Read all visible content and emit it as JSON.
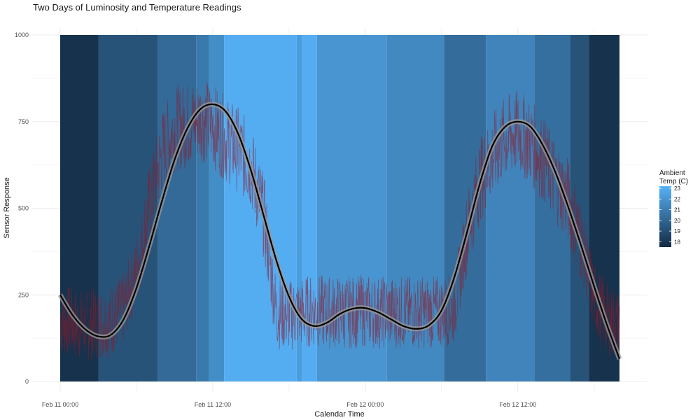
{
  "chart_data": {
    "type": "line",
    "title": "Two Days of Luminosity and Temperature Readings",
    "xlabel": "Calendar Time",
    "ylabel": "Sensor Response",
    "x_ticks": [
      {
        "hour": 0,
        "label": "Feb 11 00:00"
      },
      {
        "hour": 12,
        "label": "Feb 11 12:00"
      },
      {
        "hour": 24,
        "label": "Feb 12 00:00"
      },
      {
        "hour": 36,
        "label": "Feb 12 12:00"
      }
    ],
    "x_range_hours": [
      0,
      44
    ],
    "ylim": [
      0,
      1000
    ],
    "y_ticks": [
      0,
      250,
      500,
      750,
      1000
    ],
    "grid": true,
    "raw_series": {
      "color": "#8b1a2b",
      "points": [
        [
          0,
          180
        ],
        [
          1,
          170
        ],
        [
          2,
          160
        ],
        [
          3,
          170
        ],
        [
          4,
          175
        ],
        [
          5,
          210
        ],
        [
          6,
          320
        ],
        [
          7,
          500
        ],
        [
          8,
          660
        ],
        [
          9,
          730
        ],
        [
          10,
          740
        ],
        [
          11,
          760
        ],
        [
          12,
          740
        ],
        [
          13,
          700
        ],
        [
          14,
          670
        ],
        [
          15,
          620
        ],
        [
          16,
          480
        ],
        [
          17,
          200
        ],
        [
          18,
          190
        ],
        [
          19,
          200
        ],
        [
          20,
          205
        ],
        [
          21,
          200
        ],
        [
          22,
          200
        ],
        [
          23,
          200
        ],
        [
          24,
          205
        ],
        [
          25,
          200
        ],
        [
          26,
          200
        ],
        [
          27,
          200
        ],
        [
          28,
          200
        ],
        [
          29,
          200
        ],
        [
          30,
          200
        ],
        [
          31,
          210
        ],
        [
          32,
          430
        ],
        [
          33,
          580
        ],
        [
          34,
          650
        ],
        [
          35,
          700
        ],
        [
          36,
          720
        ],
        [
          37,
          690
        ],
        [
          38,
          640
        ],
        [
          39,
          580
        ],
        [
          40,
          520
        ],
        [
          41,
          400
        ],
        [
          42,
          240
        ],
        [
          43,
          180
        ],
        [
          44,
          160
        ]
      ],
      "band_width": 250
    },
    "smooth_series": {
      "color": "#000000",
      "points": [
        [
          0,
          250
        ],
        [
          1,
          190
        ],
        [
          2,
          150
        ],
        [
          3,
          130
        ],
        [
          4,
          135
        ],
        [
          5,
          180
        ],
        [
          6,
          270
        ],
        [
          7,
          390
        ],
        [
          8,
          520
        ],
        [
          9,
          640
        ],
        [
          10,
          730
        ],
        [
          11,
          785
        ],
        [
          12,
          800
        ],
        [
          13,
          780
        ],
        [
          14,
          715
        ],
        [
          15,
          610
        ],
        [
          16,
          480
        ],
        [
          17,
          350
        ],
        [
          18,
          245
        ],
        [
          19,
          180
        ],
        [
          20,
          160
        ],
        [
          21,
          170
        ],
        [
          22,
          195
        ],
        [
          23,
          210
        ],
        [
          24,
          212
        ],
        [
          25,
          200
        ],
        [
          26,
          180
        ],
        [
          27,
          160
        ],
        [
          28,
          152
        ],
        [
          29,
          162
        ],
        [
          30,
          205
        ],
        [
          31,
          300
        ],
        [
          32,
          430
        ],
        [
          33,
          570
        ],
        [
          34,
          680
        ],
        [
          35,
          735
        ],
        [
          36,
          750
        ],
        [
          37,
          735
        ],
        [
          38,
          680
        ],
        [
          39,
          600
        ],
        [
          40,
          500
        ],
        [
          41,
          390
        ],
        [
          42,
          275
        ],
        [
          43,
          165
        ],
        [
          44,
          65
        ]
      ]
    },
    "temperature_bands": [
      {
        "start": 0,
        "end": 3,
        "temp": 17.8
      },
      {
        "start": 3,
        "end": 7.7,
        "temp": 19.2
      },
      {
        "start": 7.7,
        "end": 10.7,
        "temp": 20.2
      },
      {
        "start": 10.7,
        "end": 11.7,
        "temp": 20.8
      },
      {
        "start": 11.7,
        "end": 12.9,
        "temp": 21.7
      },
      {
        "start": 12.9,
        "end": 18.6,
        "temp": 23.0
      },
      {
        "start": 18.6,
        "end": 19.0,
        "temp": 22.3
      },
      {
        "start": 19.0,
        "end": 20.2,
        "temp": 23.0
      },
      {
        "start": 20.2,
        "end": 25.7,
        "temp": 22.0
      },
      {
        "start": 25.7,
        "end": 30.2,
        "temp": 21.5
      },
      {
        "start": 30.2,
        "end": 33.5,
        "temp": 20.3
      },
      {
        "start": 33.5,
        "end": 37.3,
        "temp": 21.3
      },
      {
        "start": 37.3,
        "end": 40.1,
        "temp": 20.4
      },
      {
        "start": 40.1,
        "end": 41.6,
        "temp": 19.2
      },
      {
        "start": 41.6,
        "end": 44,
        "temp": 17.8
      }
    ],
    "legend": {
      "title_lines": [
        "Ambient",
        "Temp (C)"
      ],
      "position": "right",
      "range": [
        17.5,
        23.2
      ],
      "ticks": [
        23,
        22,
        21,
        20,
        19,
        18
      ],
      "color_low": "#132b43",
      "color_high": "#56b1f7"
    }
  }
}
